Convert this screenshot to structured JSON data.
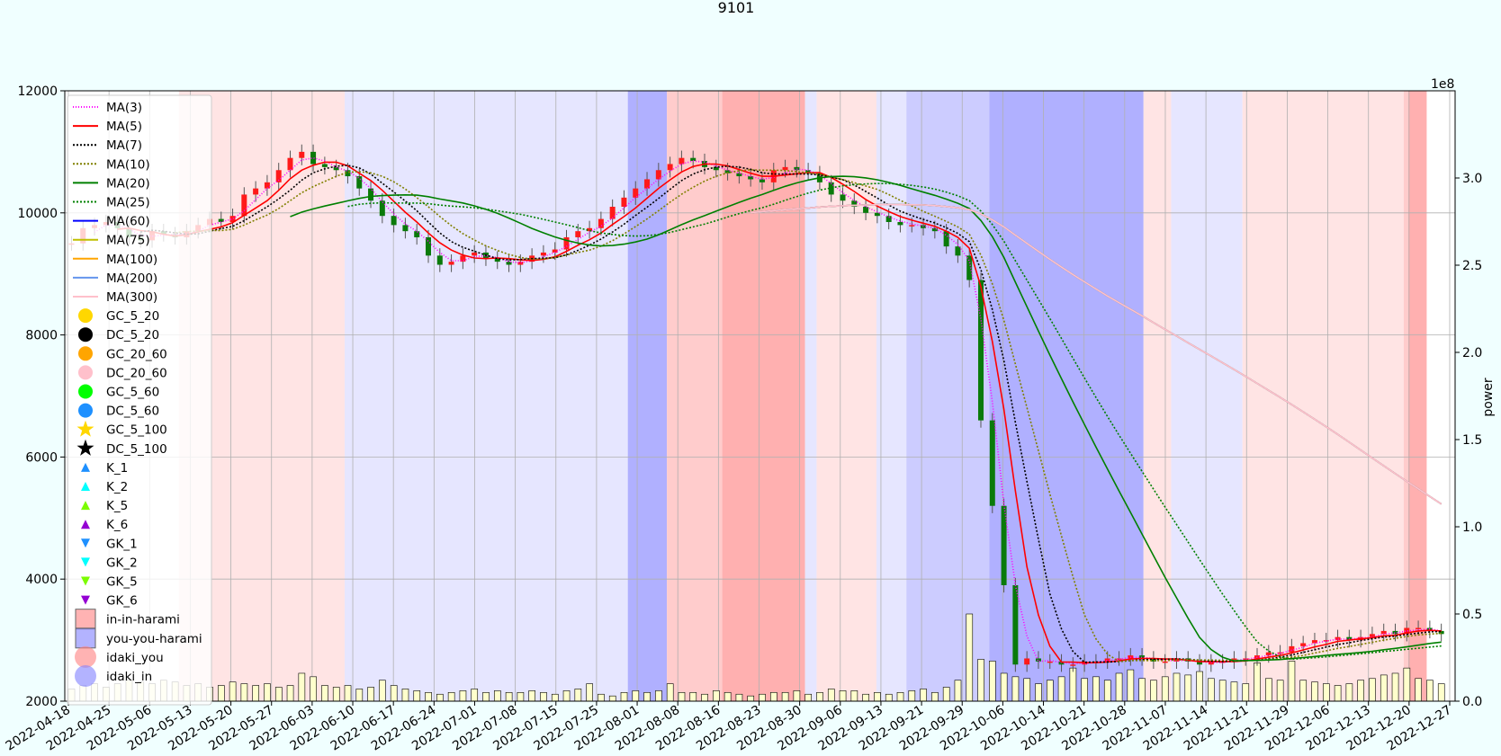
{
  "chart_data": {
    "type": "candlestick",
    "title": "9101",
    "xlabel": "",
    "ylabel": "",
    "y2label": "power",
    "y2_offset_text": "1e8",
    "ylim": [
      2000,
      12000
    ],
    "y2lim": [
      0,
      3.5
    ],
    "yticks": [
      "2000",
      "4000",
      "6000",
      "8000",
      "10000",
      "12000"
    ],
    "y2ticks": [
      "0.0",
      "0.5",
      "1.0",
      "1.5",
      "2.0",
      "2.5",
      "3.0"
    ],
    "xticks": [
      "2022-04-18",
      "2022-04-25",
      "2022-05-06",
      "2022-05-13",
      "2022-05-20",
      "2022-05-27",
      "2022-06-03",
      "2022-06-10",
      "2022-06-17",
      "2022-06-24",
      "2022-07-01",
      "2022-07-08",
      "2022-07-15",
      "2022-07-25",
      "2022-08-01",
      "2022-08-08",
      "2022-08-16",
      "2022-08-23",
      "2022-08-30",
      "2022-09-06",
      "2022-09-13",
      "2022-09-21",
      "2022-09-29",
      "2022-10-06",
      "2022-10-14",
      "2022-10-21",
      "2022-10-28",
      "2022-11-07",
      "2022-11-14",
      "2022-11-21",
      "2022-11-29",
      "2022-12-06",
      "2022-12-13",
      "2022-12-20",
      "2022-12-27"
    ],
    "grid": true,
    "legend_position": "upper-left",
    "legend": [
      {
        "label": "MA(3)",
        "kind": "line",
        "color": "#ff00ff",
        "dash": "1,2"
      },
      {
        "label": "MA(5)",
        "kind": "line",
        "color": "#ff0000",
        "dash": ""
      },
      {
        "label": "MA(7)",
        "kind": "line",
        "color": "#000000",
        "dash": "2,2"
      },
      {
        "label": "MA(10)",
        "kind": "line",
        "color": "#808000",
        "dash": "2,2"
      },
      {
        "label": "MA(20)",
        "kind": "line",
        "color": "#008000",
        "dash": ""
      },
      {
        "label": "MA(25)",
        "kind": "line",
        "color": "#008000",
        "dash": "2,2"
      },
      {
        "label": "MA(60)",
        "kind": "line",
        "color": "#0000ff",
        "dash": ""
      },
      {
        "label": "MA(75)",
        "kind": "line",
        "color": "#bfbf00",
        "dash": ""
      },
      {
        "label": "MA(100)",
        "kind": "line",
        "color": "#ffa500",
        "dash": ""
      },
      {
        "label": "MA(200)",
        "kind": "line",
        "color": "#6495ed",
        "dash": ""
      },
      {
        "label": "MA(300)",
        "kind": "line",
        "color": "#ffc0cb",
        "dash": ""
      },
      {
        "label": "GC_5_20",
        "kind": "circle",
        "color": "#ffd700"
      },
      {
        "label": "DC_5_20",
        "kind": "circle",
        "color": "#000000"
      },
      {
        "label": "GC_20_60",
        "kind": "circle",
        "color": "#ffa500"
      },
      {
        "label": "DC_20_60",
        "kind": "circle",
        "color": "#ffc0cb"
      },
      {
        "label": "GC_5_60",
        "kind": "circle",
        "color": "#00ff00"
      },
      {
        "label": "DC_5_60",
        "kind": "circle",
        "color": "#1e90ff"
      },
      {
        "label": "GC_5_100",
        "kind": "star",
        "color": "#ffd700"
      },
      {
        "label": "DC_5_100",
        "kind": "star",
        "color": "#000000"
      },
      {
        "label": "K_1",
        "kind": "tri-up",
        "color": "#1e90ff"
      },
      {
        "label": "K_2",
        "kind": "tri-up",
        "color": "#00ffff"
      },
      {
        "label": "K_5",
        "kind": "tri-up",
        "color": "#7cfc00"
      },
      {
        "label": "K_6",
        "kind": "tri-up",
        "color": "#9400d3"
      },
      {
        "label": "GK_1",
        "kind": "tri-down",
        "color": "#1e90ff"
      },
      {
        "label": "GK_2",
        "kind": "tri-down",
        "color": "#00ffff"
      },
      {
        "label": "GK_5",
        "kind": "tri-down",
        "color": "#7cfc00"
      },
      {
        "label": "GK_6",
        "kind": "tri-down",
        "color": "#9400d3"
      },
      {
        "label": "in-in-harami",
        "kind": "square",
        "color": "#ff8080"
      },
      {
        "label": "you-you-harami",
        "kind": "square",
        "color": "#8080ff"
      },
      {
        "label": "idaki_you",
        "kind": "bigcircle",
        "color": "#ff8080"
      },
      {
        "label": "idaki_in",
        "kind": "bigcircle",
        "color": "#8080ff"
      }
    ],
    "bands": [
      {
        "from": 4.8,
        "to": 12,
        "color": "#ffe4e4"
      },
      {
        "from": 12,
        "to": 24.3,
        "color": "#e6e6ff"
      },
      {
        "from": 24.3,
        "to": 26,
        "color": "#b0b0ff"
      },
      {
        "from": 26,
        "to": 28.4,
        "color": "#ffcccc"
      },
      {
        "from": 28.4,
        "to": 32,
        "color": "#ffb0b0"
      },
      {
        "from": 32,
        "to": 32.5,
        "color": "#e6e6ff"
      },
      {
        "from": 32.5,
        "to": 35.1,
        "color": "#ffe4e4"
      },
      {
        "from": 35.1,
        "to": 36.4,
        "color": "#e6e6ff"
      },
      {
        "from": 36.4,
        "to": 40,
        "color": "#ccccff"
      },
      {
        "from": 40,
        "to": 46.7,
        "color": "#b0b0ff"
      },
      {
        "from": 46.7,
        "to": 47.9,
        "color": "#ffe4e4"
      },
      {
        "from": 47.9,
        "to": 51,
        "color": "#e6e6ff"
      },
      {
        "from": 51,
        "to": 58,
        "color": "#ffe4e4"
      },
      {
        "from": 58,
        "to": 58.2,
        "color": "#ffcccc"
      },
      {
        "from": 58.2,
        "to": 59,
        "color": "#ffb0b0"
      }
    ],
    "close": [
      9500,
      9750,
      9800,
      9850,
      9750,
      9600,
      9550,
      9700,
      9650,
      9600,
      9700,
      9800,
      9900,
      9850,
      9950,
      10300,
      10400,
      10500,
      10700,
      10900,
      11000,
      10800,
      10750,
      10700,
      10600,
      10400,
      10200,
      9950,
      9800,
      9700,
      9600,
      9300,
      9150,
      9200,
      9300,
      9350,
      9250,
      9200,
      9150,
      9200,
      9300,
      9350,
      9400,
      9600,
      9700,
      9750,
      9900,
      10100,
      10250,
      10400,
      10550,
      10700,
      10800,
      10900,
      10850,
      10750,
      10700,
      10650,
      10600,
      10550,
      10500,
      10700,
      10750,
      10700,
      10650,
      10500,
      10300,
      10200,
      10100,
      10000,
      9950,
      9850,
      9800,
      9800,
      9750,
      9700,
      9450,
      9300,
      8900,
      6600,
      5200,
      3900,
      2600,
      2700,
      2650,
      2650,
      2600,
      2600,
      2650,
      2650,
      2700,
      2700,
      2750,
      2700,
      2650,
      2650,
      2700,
      2650,
      2600,
      2650,
      2650,
      2700,
      2700,
      2750,
      2800,
      2800,
      2900,
      2950,
      3000,
      3000,
      3050,
      3000,
      3050,
      3100,
      3150,
      3100,
      3200,
      3200,
      3150,
      3100
    ],
    "volume": [
      0.07,
      0.09,
      0.1,
      0.08,
      0.1,
      0.12,
      0.11,
      0.1,
      0.12,
      0.11,
      0.09,
      0.1,
      0.08,
      0.09,
      0.11,
      0.1,
      0.09,
      0.1,
      0.08,
      0.09,
      0.16,
      0.14,
      0.09,
      0.08,
      0.09,
      0.07,
      0.08,
      0.12,
      0.09,
      0.07,
      0.06,
      0.05,
      0.04,
      0.05,
      0.06,
      0.07,
      0.05,
      0.06,
      0.05,
      0.05,
      0.06,
      0.05,
      0.04,
      0.06,
      0.07,
      0.1,
      0.04,
      0.03,
      0.05,
      0.06,
      0.05,
      0.06,
      0.1,
      0.05,
      0.05,
      0.04,
      0.06,
      0.05,
      0.04,
      0.03,
      0.04,
      0.05,
      0.05,
      0.06,
      0.04,
      0.05,
      0.07,
      0.06,
      0.06,
      0.04,
      0.05,
      0.04,
      0.05,
      0.06,
      0.07,
      0.05,
      0.08,
      0.12,
      0.5,
      0.24,
      0.23,
      0.16,
      0.14,
      0.13,
      0.1,
      0.12,
      0.14,
      0.19,
      0.13,
      0.14,
      0.12,
      0.16,
      0.18,
      0.13,
      0.12,
      0.14,
      0.16,
      0.15,
      0.17,
      0.13,
      0.12,
      0.11,
      0.1,
      0.22,
      0.13,
      0.12,
      0.23,
      0.12,
      0.11,
      0.1,
      0.09,
      0.1,
      0.12,
      0.13,
      0.15,
      0.16,
      0.19,
      0.13,
      0.12,
      0.1
    ]
  }
}
